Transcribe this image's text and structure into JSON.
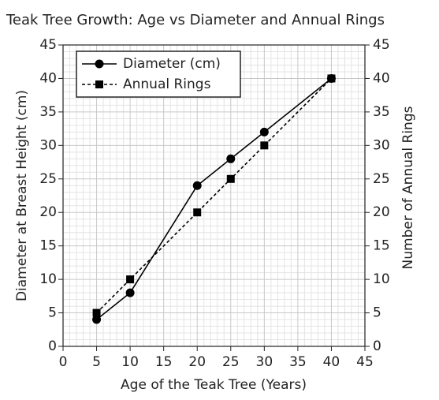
{
  "chart_data": {
    "type": "line",
    "title": "Teak Tree Growth: Age vs Diameter and Annual Rings",
    "x_label": "Age of the Teak Tree (Years)",
    "y_label": "Diameter at Breast Height (cm)",
    "y2_label": "Number of Annual Rings",
    "x": [
      5,
      10,
      20,
      25,
      30,
      40
    ],
    "series": [
      {
        "name": "Diameter (cm)",
        "color": "#000000",
        "marker": "circle",
        "dash": false,
        "values": [
          4,
          8,
          24,
          28,
          32,
          40
        ]
      },
      {
        "name": "Annual Rings",
        "color": "#000000",
        "marker": "square",
        "dash": true,
        "axis": "y2",
        "values": [
          5,
          10,
          20,
          25,
          30,
          40
        ]
      }
    ],
    "xlim": [
      0,
      45
    ],
    "xticks": [
      0,
      5,
      10,
      15,
      20,
      25,
      30,
      35,
      40,
      45
    ],
    "ylim": [
      0,
      45
    ],
    "yticks": [
      0,
      5,
      10,
      15,
      20,
      25,
      30,
      35,
      40,
      45
    ],
    "y2lim": [
      0,
      45
    ],
    "y2ticks": [
      0,
      5,
      10,
      15,
      20,
      25,
      30,
      35,
      40,
      45
    ],
    "grid": true,
    "legend": "upper left"
  }
}
